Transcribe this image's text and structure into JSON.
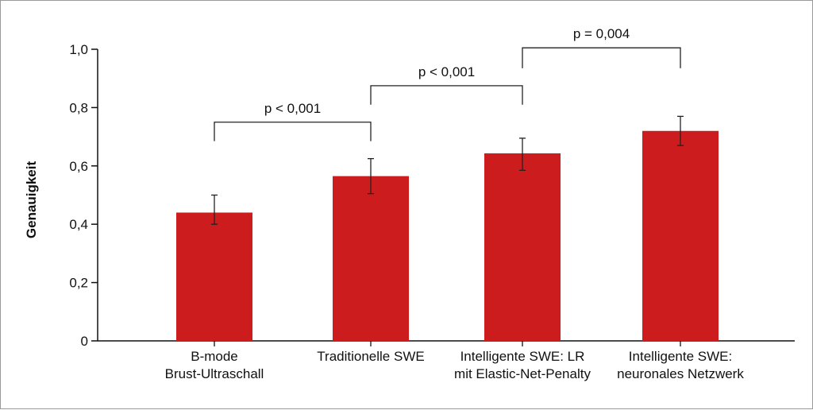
{
  "chart_data": {
    "type": "bar",
    "ylabel": "Genauigkeit",
    "ylim": [
      0,
      1.0
    ],
    "yticks": [
      {
        "value": 0,
        "label": "0"
      },
      {
        "value": 0.2,
        "label": "0,2"
      },
      {
        "value": 0.4,
        "label": "0,4"
      },
      {
        "value": 0.6,
        "label": "0,6"
      },
      {
        "value": 0.8,
        "label": "0,8"
      },
      {
        "value": 1.0,
        "label": "1,0"
      }
    ],
    "categories": [
      [
        "B-mode",
        "Brust-Ultraschall"
      ],
      [
        "Traditionelle SWE"
      ],
      [
        "Intelligente SWE: LR",
        "mit Elastic-Net-Penalty"
      ],
      [
        "Intelligente SWE:",
        "neuronales Netzwerk"
      ]
    ],
    "values": [
      0.44,
      0.565,
      0.643,
      0.72
    ],
    "error": [
      [
        0.4,
        0.5
      ],
      [
        0.505,
        0.625
      ],
      [
        0.585,
        0.695
      ],
      [
        0.67,
        0.77
      ]
    ],
    "bar_color": "#cc1c1e",
    "comparisons": [
      {
        "from": 0,
        "to": 1,
        "y": 0.75,
        "drop": 0.065,
        "label": "p < 0,001"
      },
      {
        "from": 1,
        "to": 2,
        "y": 0.875,
        "drop": 0.065,
        "label": "p < 0,001"
      },
      {
        "from": 2,
        "to": 3,
        "y": 1.005,
        "drop": 0.07,
        "label": "p = 0,004"
      }
    ],
    "grid": false
  }
}
